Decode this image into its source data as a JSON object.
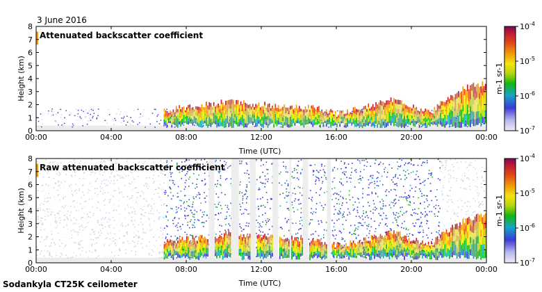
{
  "date_label": "3 June 2016",
  "footer": "Sodankyla CT25K ceilometer",
  "colors": [
    "#ececec",
    "#d2d2e6",
    "#3b3bd6",
    "#17a5a5",
    "#13b613",
    "#b9d40d",
    "#f1e50c",
    "#f19b0b",
    "#e34916",
    "#c01f33",
    "#7b0a4e"
  ],
  "chart_data": [
    {
      "type": "heatmap",
      "title": "Attenuated backscatter coefficient",
      "xlabel": "Time (UTC)",
      "ylabel": "Height (km)",
      "xlim": [
        0,
        24
      ],
      "ylim": [
        0,
        8
      ],
      "xticks": [
        0,
        4,
        8,
        12,
        16,
        20,
        24
      ],
      "xtick_labels": [
        "00:00",
        "04:00",
        "08:00",
        "12:00",
        "16:00",
        "20:00",
        "00:00"
      ],
      "yticks": [
        0,
        1,
        2,
        3,
        4,
        5,
        6,
        7,
        8
      ],
      "colorbar": {
        "label": "m-1 sr-1",
        "scale": "log",
        "range": [
          1e-07,
          0.0001
        ],
        "tick_labels": [
          "10-7",
          "10-6",
          "10-5",
          "10-4"
        ]
      },
      "cloud_layer_km": [
        [
          0,
          7.0
        ],
        [
          1,
          1.4
        ],
        [
          2,
          1.2
        ],
        [
          3,
          1.3
        ],
        [
          4,
          1.0
        ],
        [
          5,
          1.1
        ],
        [
          6,
          1.3
        ],
        [
          7,
          1.6
        ],
        [
          8,
          1.8
        ],
        [
          9,
          2.0
        ],
        [
          10,
          2.2
        ],
        [
          11,
          2.1
        ],
        [
          12,
          2.0
        ],
        [
          13,
          1.9
        ],
        [
          14,
          1.8
        ],
        [
          15,
          1.7
        ],
        [
          16,
          1.3
        ],
        [
          17,
          1.6
        ],
        [
          18,
          2.0
        ],
        [
          19,
          2.4
        ],
        [
          20,
          1.8
        ],
        [
          21,
          1.4
        ],
        [
          22,
          2.6
        ],
        [
          23,
          3.4
        ],
        [
          24,
          3.7
        ]
      ]
    },
    {
      "type": "heatmap",
      "title": "Raw attenuated backscatter coefficient",
      "xlabel": "Time (UTC)",
      "ylabel": "Height (km)",
      "xlim": [
        0,
        24
      ],
      "ylim": [
        0,
        8
      ],
      "xticks": [
        0,
        4,
        8,
        12,
        16,
        20,
        24
      ],
      "xtick_labels": [
        "00:00",
        "04:00",
        "08:00",
        "12:00",
        "16:00",
        "20:00",
        "00:00"
      ],
      "yticks": [
        0,
        1,
        2,
        3,
        4,
        5,
        6,
        7,
        8
      ],
      "colorbar": {
        "label": "m-1 sr-1",
        "scale": "log",
        "range": [
          1e-07,
          0.0001
        ],
        "tick_labels": [
          "10-7",
          "10-6",
          "10-5",
          "10-4"
        ]
      },
      "gap_intervals_utc": [
        [
          9.2,
          9.5
        ],
        [
          10.4,
          10.8
        ],
        [
          11.4,
          11.7
        ],
        [
          12.6,
          12.9
        ],
        [
          13.5,
          13.6
        ],
        [
          14.2,
          14.5
        ],
        [
          15.5,
          15.7
        ]
      ]
    }
  ]
}
